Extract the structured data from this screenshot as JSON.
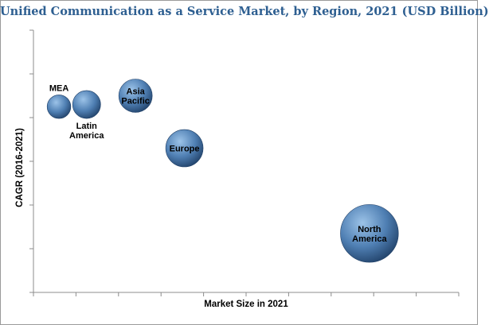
{
  "chart_data": {
    "type": "bubble",
    "title": "Unified Communication as a Service Market, by Region, 2021 (USD Billion)",
    "xlabel": "Market Size in 2021",
    "ylabel": "CAGR (2016-2021)",
    "x_ticks": 10,
    "y_ticks": 6,
    "points": [
      {
        "label": [
          "MEA"
        ],
        "x": 0.6,
        "y": 4.25,
        "size": 0.5,
        "label_side": "above"
      },
      {
        "label": [
          "Latin",
          "America"
        ],
        "x": 1.25,
        "y": 4.3,
        "size": 0.7,
        "label_side": "below"
      },
      {
        "label": [
          "Asia",
          "Pacific"
        ],
        "x": 2.4,
        "y": 4.5,
        "size": 1.0,
        "label_side": "inside"
      },
      {
        "label": [
          "Europe"
        ],
        "x": 3.55,
        "y": 3.3,
        "size": 1.25,
        "label_side": "inside"
      },
      {
        "label": [
          "North",
          "America"
        ],
        "x": 7.9,
        "y": 1.35,
        "size": 3.0,
        "label_side": "inside"
      }
    ],
    "grid": false,
    "legend": "none"
  },
  "colors": {
    "title": "#2e5f91",
    "bubble_light": "#9cc3e8",
    "bubble_mid": "#4f7fb3",
    "bubble_dark": "#1f3f66",
    "axis": "#8c8c8c"
  }
}
